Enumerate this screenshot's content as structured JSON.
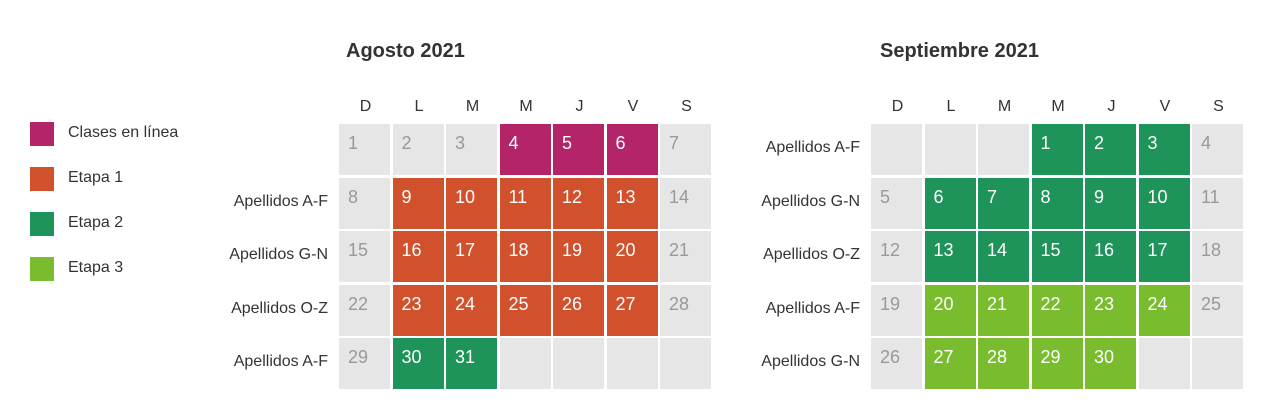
{
  "colors": {
    "empty": "#e6e6e6",
    "empty_text": "#999999",
    "filled_text": "#ffffff",
    "clases_en_linea": "#b32468",
    "etapa_1": "#d0512b",
    "etapa_2": "#1e935a",
    "etapa_3": "#79bd2f"
  },
  "legend": [
    {
      "label": "Clases en línea",
      "color": "#b32468"
    },
    {
      "label": "Etapa 1",
      "color": "#d0512b"
    },
    {
      "label": "Etapa 2",
      "color": "#1e935a"
    },
    {
      "label": "Etapa 3",
      "color": "#79bd2f"
    }
  ],
  "months": [
    {
      "title": "Agosto 2021",
      "day_headers": [
        "D",
        "L",
        "M",
        "M",
        "J",
        "V",
        "S"
      ],
      "rows": [
        {
          "label": "",
          "cells": [
            {
              "day": "1",
              "status": "empty"
            },
            {
              "day": "2",
              "status": "empty"
            },
            {
              "day": "3",
              "status": "empty"
            },
            {
              "day": "4",
              "status": "clases_en_linea"
            },
            {
              "day": "5",
              "status": "clases_en_linea"
            },
            {
              "day": "6",
              "status": "clases_en_linea"
            },
            {
              "day": "7",
              "status": "empty"
            }
          ]
        },
        {
          "label": "Apellidos A-F",
          "cells": [
            {
              "day": "8",
              "status": "empty"
            },
            {
              "day": "9",
              "status": "etapa_1"
            },
            {
              "day": "10",
              "status": "etapa_1"
            },
            {
              "day": "11",
              "status": "etapa_1"
            },
            {
              "day": "12",
              "status": "etapa_1"
            },
            {
              "day": "13",
              "status": "etapa_1"
            },
            {
              "day": "14",
              "status": "empty"
            }
          ]
        },
        {
          "label": "Apellidos G-N",
          "cells": [
            {
              "day": "15",
              "status": "empty"
            },
            {
              "day": "16",
              "status": "etapa_1"
            },
            {
              "day": "17",
              "status": "etapa_1"
            },
            {
              "day": "18",
              "status": "etapa_1"
            },
            {
              "day": "19",
              "status": "etapa_1"
            },
            {
              "day": "20",
              "status": "etapa_1"
            },
            {
              "day": "21",
              "status": "empty"
            }
          ]
        },
        {
          "label": "Apellidos O-Z",
          "cells": [
            {
              "day": "22",
              "status": "empty"
            },
            {
              "day": "23",
              "status": "etapa_1"
            },
            {
              "day": "24",
              "status": "etapa_1"
            },
            {
              "day": "25",
              "status": "etapa_1"
            },
            {
              "day": "26",
              "status": "etapa_1"
            },
            {
              "day": "27",
              "status": "etapa_1"
            },
            {
              "day": "28",
              "status": "empty"
            }
          ]
        },
        {
          "label": "Apellidos A-F",
          "cells": [
            {
              "day": "29",
              "status": "empty"
            },
            {
              "day": "30",
              "status": "etapa_2"
            },
            {
              "day": "31",
              "status": "etapa_2"
            },
            {
              "day": "",
              "status": "empty"
            },
            {
              "day": "",
              "status": "empty"
            },
            {
              "day": "",
              "status": "empty"
            },
            {
              "day": "",
              "status": "empty"
            }
          ]
        }
      ]
    },
    {
      "title": "Septiembre 2021",
      "day_headers": [
        "D",
        "L",
        "M",
        "M",
        "J",
        "V",
        "S"
      ],
      "rows": [
        {
          "label": "Apellidos A-F",
          "cells": [
            {
              "day": "",
              "status": "empty"
            },
            {
              "day": "",
              "status": "empty"
            },
            {
              "day": "",
              "status": "empty"
            },
            {
              "day": "1",
              "status": "etapa_2"
            },
            {
              "day": "2",
              "status": "etapa_2"
            },
            {
              "day": "3",
              "status": "etapa_2"
            },
            {
              "day": "4",
              "status": "empty"
            }
          ]
        },
        {
          "label": "Apellidos G-N",
          "cells": [
            {
              "day": "5",
              "status": "empty"
            },
            {
              "day": "6",
              "status": "etapa_2"
            },
            {
              "day": "7",
              "status": "etapa_2"
            },
            {
              "day": "8",
              "status": "etapa_2"
            },
            {
              "day": "9",
              "status": "etapa_2"
            },
            {
              "day": "10",
              "status": "etapa_2"
            },
            {
              "day": "11",
              "status": "empty"
            }
          ]
        },
        {
          "label": "Apellidos O-Z",
          "cells": [
            {
              "day": "12",
              "status": "empty"
            },
            {
              "day": "13",
              "status": "etapa_2"
            },
            {
              "day": "14",
              "status": "etapa_2"
            },
            {
              "day": "15",
              "status": "etapa_2"
            },
            {
              "day": "16",
              "status": "etapa_2"
            },
            {
              "day": "17",
              "status": "etapa_2"
            },
            {
              "day": "18",
              "status": "empty"
            }
          ]
        },
        {
          "label": "Apellidos A-F",
          "cells": [
            {
              "day": "19",
              "status": "empty"
            },
            {
              "day": "20",
              "status": "etapa_3"
            },
            {
              "day": "21",
              "status": "etapa_3"
            },
            {
              "day": "22",
              "status": "etapa_3"
            },
            {
              "day": "23",
              "status": "etapa_3"
            },
            {
              "day": "24",
              "status": "etapa_3"
            },
            {
              "day": "25",
              "status": "empty"
            }
          ]
        },
        {
          "label": "Apellidos G-N",
          "cells": [
            {
              "day": "26",
              "status": "empty"
            },
            {
              "day": "27",
              "status": "etapa_3"
            },
            {
              "day": "28",
              "status": "etapa_3"
            },
            {
              "day": "29",
              "status": "etapa_3"
            },
            {
              "day": "30",
              "status": "etapa_3"
            },
            {
              "day": "",
              "status": "empty"
            },
            {
              "day": "",
              "status": "empty"
            }
          ]
        }
      ]
    }
  ]
}
